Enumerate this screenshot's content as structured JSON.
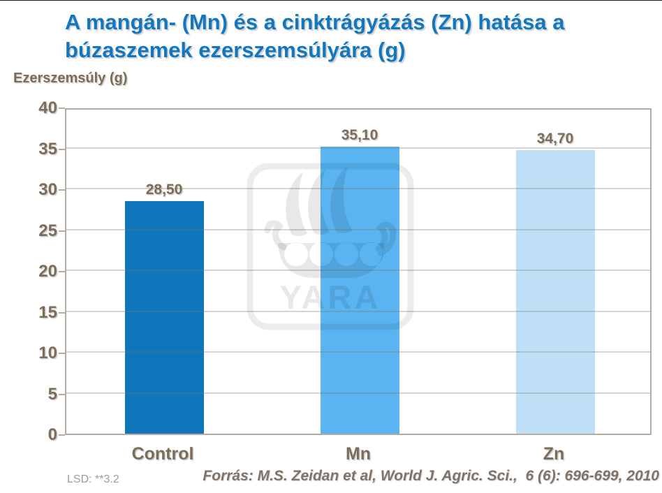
{
  "title": {
    "line1": "A mangán- (Mn) és a cinktrágyázás (Zn) hatása a",
    "line2": "búzaszemek ezerszemsúlyára (g)"
  },
  "axis_title": "Ezerszemsúly (g)",
  "footer": {
    "lsd": "LSD: **3.2",
    "source": "Forrás: M.S. Zeidan et al, World J. Agric. Sci.,  6 (6): 696-699, 2010"
  },
  "watermark": {
    "name": "yara-logo",
    "text": "YARA"
  },
  "colors": {
    "title_blue": "#1377be",
    "label_brown": "#7c6d59",
    "axis_border": "#b5ab9f",
    "lsd_gray": "#9c9c9c",
    "source_gray_brown": "#80746a",
    "bar_control": "#0f76bc",
    "bar_mn": "#59b4f1",
    "bar_zn": "#bedff6"
  },
  "chart_data": {
    "type": "bar",
    "title": "A mangán- (Mn) és a cinktrágyázás (Zn) hatása a búzaszemek ezerszemsúlyára (g)",
    "ylabel": "Ezerszemsúly (g)",
    "xlabel": "",
    "categories": [
      "Control",
      "Mn",
      "Zn"
    ],
    "values": [
      28.5,
      35.1,
      34.7
    ],
    "value_labels": [
      "28,50",
      "35,10",
      "34,70"
    ],
    "bar_colors": [
      "#0f76bc",
      "#59b4f1",
      "#bedff6"
    ],
    "ylim": [
      0,
      40
    ],
    "yticks": [
      0,
      5,
      10,
      15,
      20,
      25,
      30,
      35,
      40
    ],
    "grid": true,
    "legend": false
  }
}
